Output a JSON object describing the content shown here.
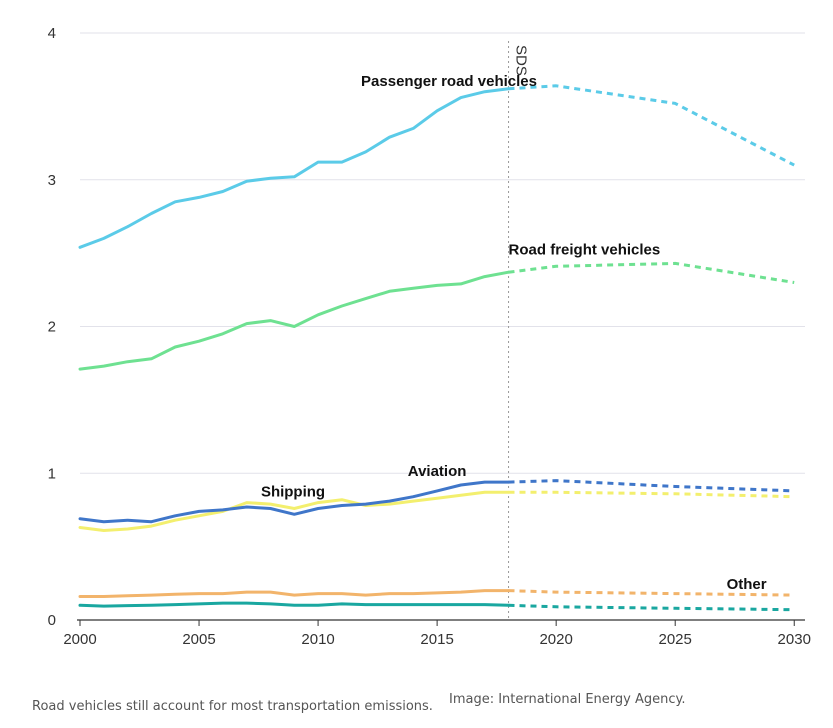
{
  "caption": "Road vehicles still account for most transportation emissions.",
  "credit": "Image: International Energy Agency.",
  "chart_data": {
    "type": "line",
    "x_ticks": [
      "2000",
      "2005",
      "2010",
      "2015",
      "2020",
      "2025",
      "2030"
    ],
    "y_ticks": [
      "0",
      "1",
      "2",
      "3",
      "4"
    ],
    "xlim": [
      2000,
      2030.2
    ],
    "ylim": [
      0,
      4
    ],
    "grid": true,
    "marker": {
      "x": 2018,
      "label": "SDS"
    },
    "series": [
      {
        "name": "Passenger road vehicles",
        "color": "#5bcbe8",
        "historical": {
          "x": [
            2000,
            2001,
            2002,
            2003,
            2004,
            2005,
            2006,
            2007,
            2008,
            2009,
            2010,
            2011,
            2012,
            2013,
            2014,
            2015,
            2016,
            2017,
            2018
          ],
          "y": [
            2.54,
            2.6,
            2.68,
            2.77,
            2.85,
            2.88,
            2.92,
            2.99,
            3.01,
            3.02,
            3.12,
            3.12,
            3.19,
            3.29,
            3.35,
            3.47,
            3.56,
            3.6,
            3.62
          ]
        },
        "projection": {
          "x": [
            2018,
            2020,
            2025,
            2030
          ],
          "y": [
            3.62,
            3.64,
            3.52,
            3.1
          ]
        }
      },
      {
        "name": "Road freight vehicles",
        "color": "#6ee191",
        "historical": {
          "x": [
            2000,
            2001,
            2002,
            2003,
            2004,
            2005,
            2006,
            2007,
            2008,
            2009,
            2010,
            2011,
            2012,
            2013,
            2014,
            2015,
            2016,
            2017,
            2018
          ],
          "y": [
            1.71,
            1.73,
            1.76,
            1.78,
            1.86,
            1.9,
            1.95,
            2.02,
            2.04,
            2.0,
            2.08,
            2.14,
            2.19,
            2.24,
            2.26,
            2.28,
            2.29,
            2.34,
            2.37
          ]
        },
        "projection": {
          "x": [
            2018,
            2020,
            2025,
            2030
          ],
          "y": [
            2.37,
            2.41,
            2.43,
            2.3
          ]
        }
      },
      {
        "name": "Shipping",
        "color": "#f3ef6e",
        "historical": {
          "x": [
            2000,
            2001,
            2002,
            2003,
            2004,
            2005,
            2006,
            2007,
            2008,
            2009,
            2010,
            2011,
            2012,
            2013,
            2014,
            2015,
            2016,
            2017,
            2018
          ],
          "y": [
            0.63,
            0.61,
            0.62,
            0.64,
            0.68,
            0.71,
            0.74,
            0.8,
            0.79,
            0.76,
            0.8,
            0.82,
            0.78,
            0.79,
            0.81,
            0.83,
            0.85,
            0.87,
            0.87
          ]
        },
        "projection": {
          "x": [
            2018,
            2020,
            2025,
            2030
          ],
          "y": [
            0.87,
            0.87,
            0.86,
            0.84
          ]
        }
      },
      {
        "name": "Aviation",
        "color": "#3f76c9",
        "historical": {
          "x": [
            2000,
            2001,
            2002,
            2003,
            2004,
            2005,
            2006,
            2007,
            2008,
            2009,
            2010,
            2011,
            2012,
            2013,
            2014,
            2015,
            2016,
            2017,
            2018
          ],
          "y": [
            0.69,
            0.67,
            0.68,
            0.67,
            0.71,
            0.74,
            0.75,
            0.77,
            0.76,
            0.72,
            0.76,
            0.78,
            0.79,
            0.81,
            0.84,
            0.88,
            0.92,
            0.94,
            0.94
          ]
        },
        "projection": {
          "x": [
            2018,
            2020,
            2025,
            2030
          ],
          "y": [
            0.94,
            0.95,
            0.91,
            0.88
          ]
        }
      },
      {
        "name": "",
        "color": "#f2b46b",
        "historical": {
          "x": [
            2000,
            2001,
            2002,
            2003,
            2004,
            2005,
            2006,
            2007,
            2008,
            2009,
            2010,
            2011,
            2012,
            2013,
            2014,
            2015,
            2016,
            2017,
            2018
          ],
          "y": [
            0.16,
            0.16,
            0.165,
            0.17,
            0.175,
            0.18,
            0.18,
            0.19,
            0.19,
            0.17,
            0.18,
            0.18,
            0.17,
            0.18,
            0.18,
            0.185,
            0.19,
            0.2,
            0.2
          ]
        },
        "projection": {
          "x": [
            2018,
            2020,
            2025,
            2030
          ],
          "y": [
            0.2,
            0.19,
            0.18,
            0.17
          ]
        }
      },
      {
        "name": "Other",
        "color": "#1aa7a0",
        "historical": {
          "x": [
            2000,
            2001,
            2002,
            2003,
            2004,
            2005,
            2006,
            2007,
            2008,
            2009,
            2010,
            2011,
            2012,
            2013,
            2014,
            2015,
            2016,
            2017,
            2018
          ],
          "y": [
            0.1,
            0.095,
            0.098,
            0.1,
            0.105,
            0.11,
            0.115,
            0.115,
            0.11,
            0.1,
            0.1,
            0.11,
            0.105,
            0.105,
            0.105,
            0.105,
            0.105,
            0.105,
            0.1
          ]
        },
        "projection": {
          "x": [
            2018,
            2020,
            2025,
            2030
          ],
          "y": [
            0.1,
            0.09,
            0.08,
            0.07
          ]
        }
      }
    ]
  }
}
